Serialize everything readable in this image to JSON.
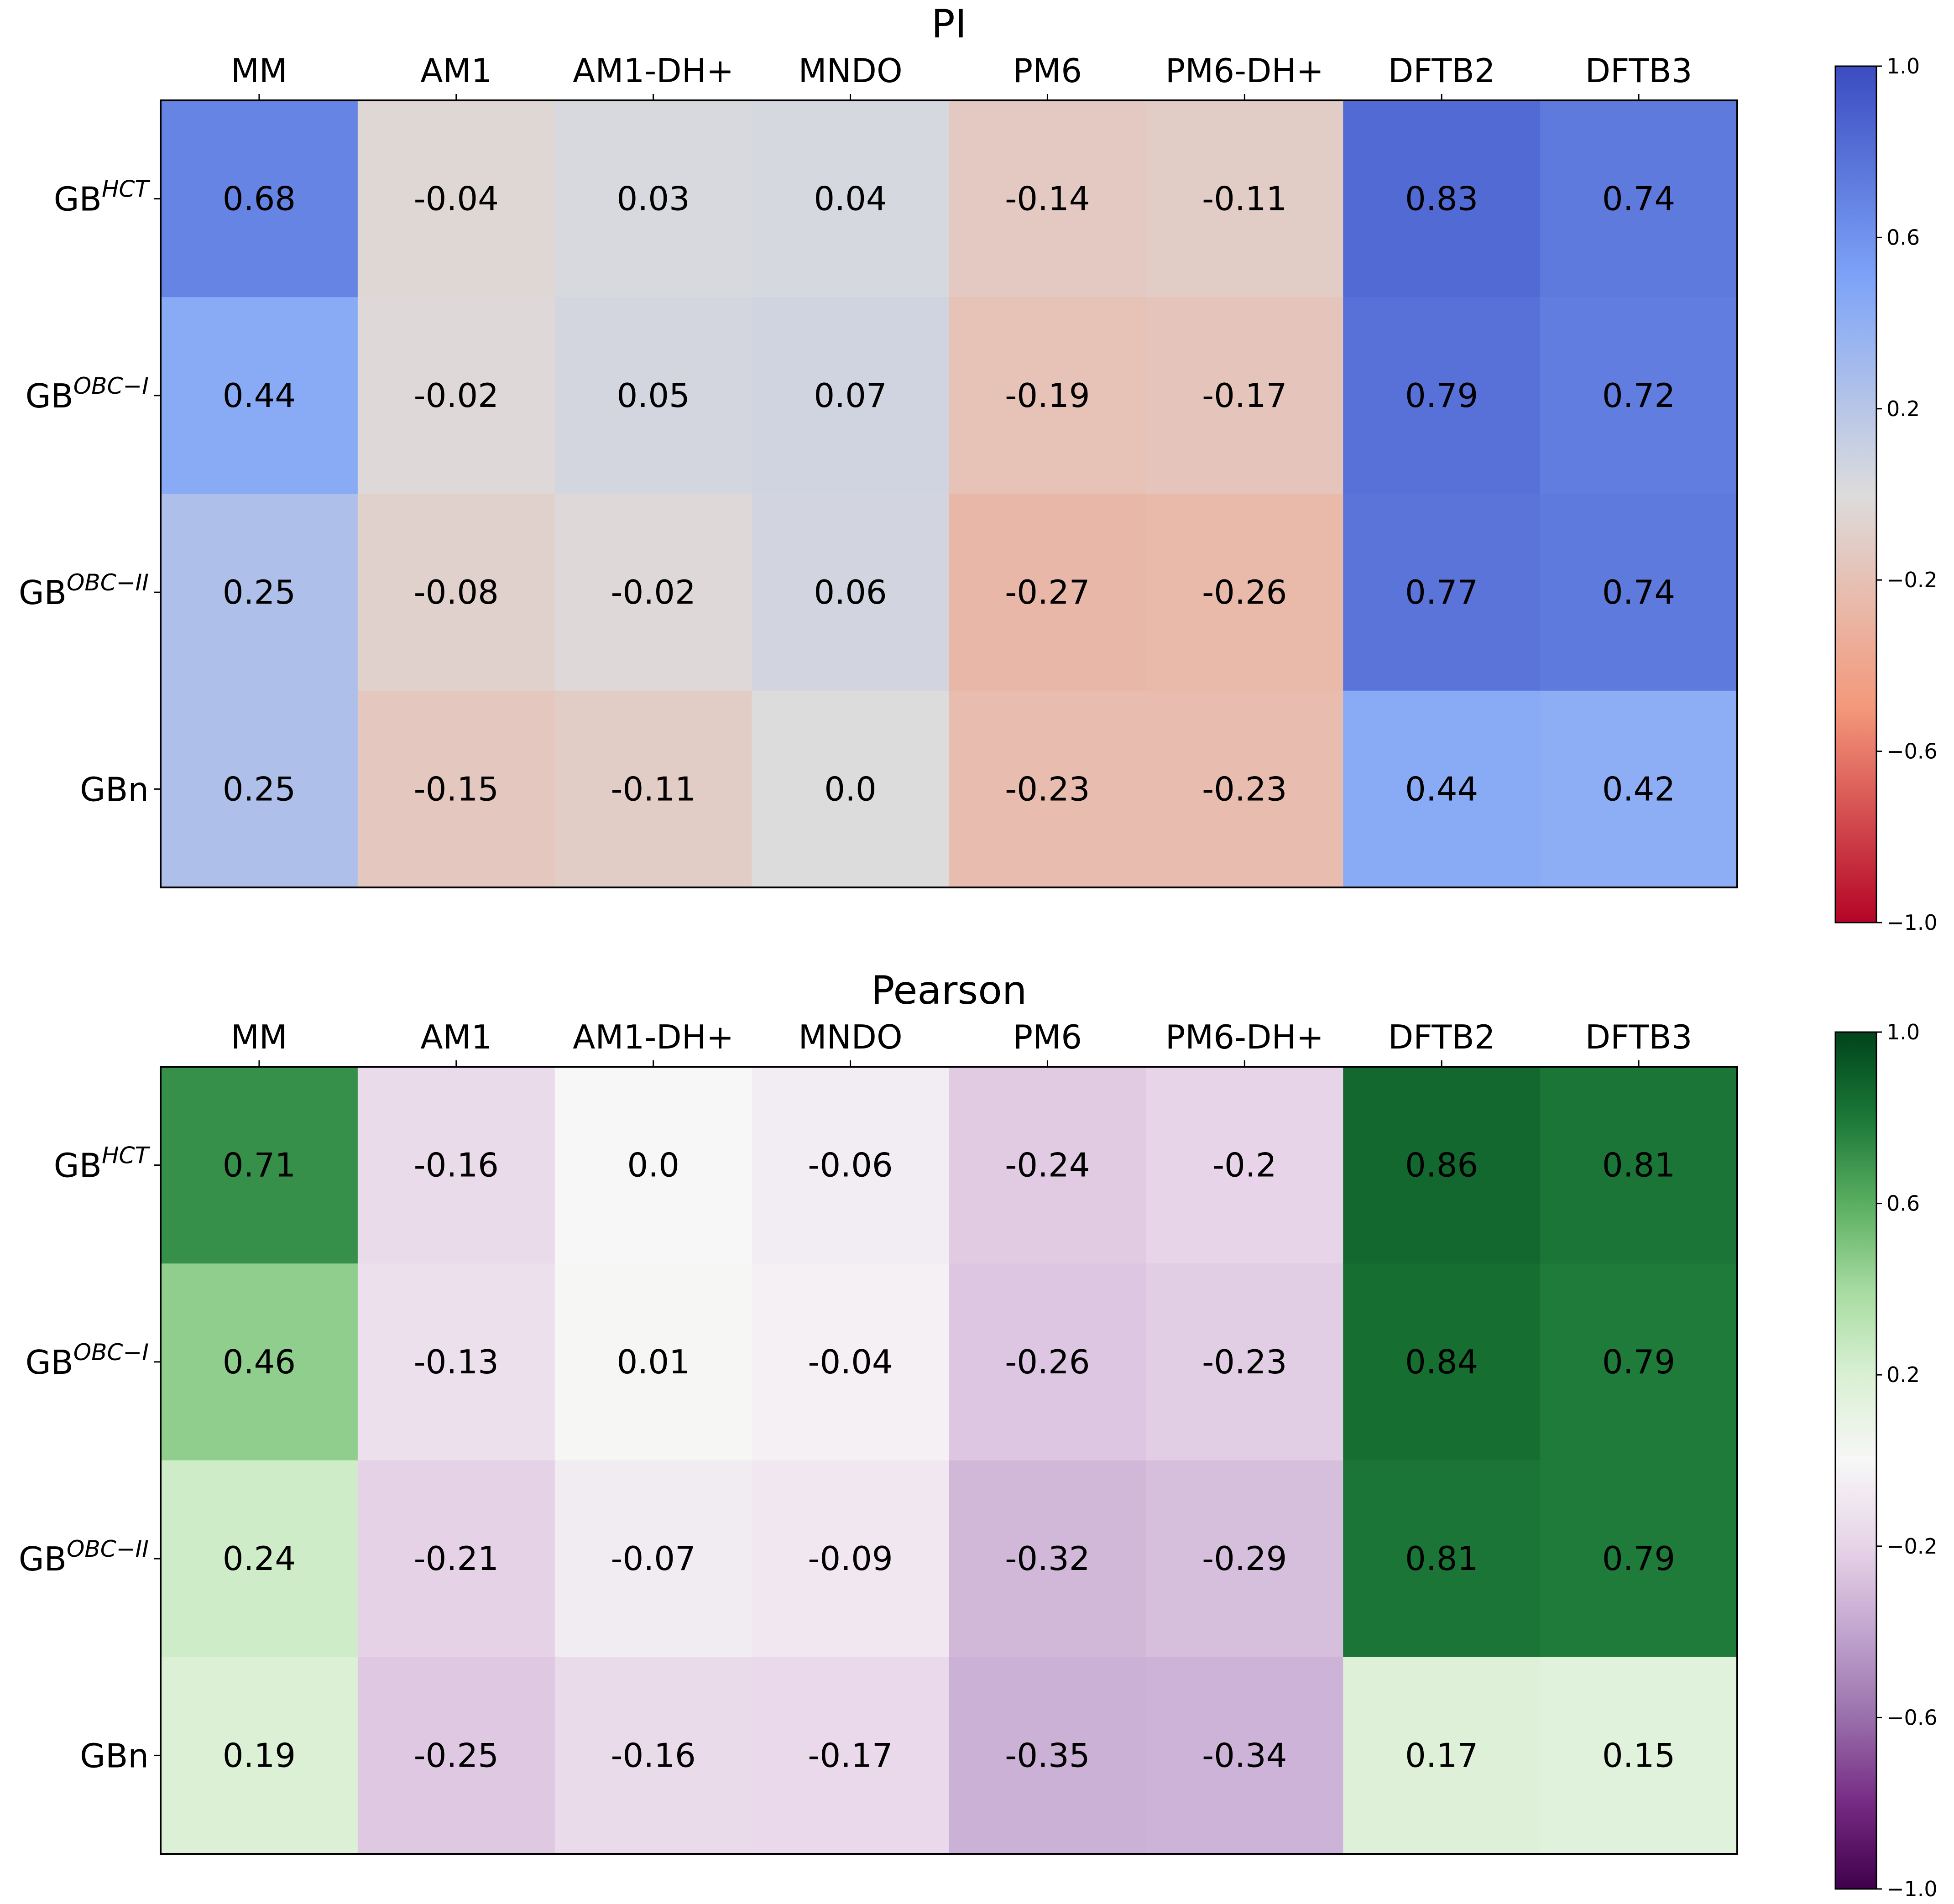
{
  "chart_data": [
    {
      "type": "heatmap",
      "title": "PI",
      "colormap": "coolwarm_r",
      "columns": [
        "MM",
        "AM1",
        "AM1-DH+",
        "MNDO",
        "PM6",
        "PM6-DH+",
        "DFTB2",
        "DFTB3"
      ],
      "rows": [
        {
          "base": "GB",
          "sup": "HCT"
        },
        {
          "base": "GB",
          "sup": "OBC−I"
        },
        {
          "base": "GB",
          "sup": "OBC−II"
        },
        {
          "base": "GBn",
          "sup": ""
        }
      ],
      "values": [
        [
          0.68,
          -0.04,
          0.03,
          0.04,
          -0.14,
          -0.11,
          0.83,
          0.74
        ],
        [
          0.44,
          -0.02,
          0.05,
          0.07,
          -0.19,
          -0.17,
          0.79,
          0.72
        ],
        [
          0.25,
          -0.08,
          -0.02,
          0.06,
          -0.27,
          -0.26,
          0.77,
          0.74
        ],
        [
          0.25,
          -0.15,
          -0.11,
          0.0,
          -0.23,
          -0.23,
          0.44,
          0.42
        ]
      ],
      "cell_labels": [
        [
          "0.68",
          "-0.04",
          "0.03",
          "0.04",
          "-0.14",
          "-0.11",
          "0.83",
          "0.74"
        ],
        [
          "0.44",
          "-0.02",
          "0.05",
          "0.07",
          "-0.19",
          "-0.17",
          "0.79",
          "0.72"
        ],
        [
          "0.25",
          "-0.08",
          "-0.02",
          "0.06",
          "-0.27",
          "-0.26",
          "0.77",
          "0.74"
        ],
        [
          "0.25",
          "-0.15",
          "-0.11",
          "0.0",
          "-0.23",
          "-0.23",
          "0.44",
          "0.42"
        ]
      ],
      "colorbar": {
        "range": [
          -1.0,
          1.0
        ],
        "ticks": [
          1.0,
          0.6,
          0.2,
          -0.2,
          -0.6,
          -1.0
        ],
        "tick_labels": [
          "1.0",
          "0.6",
          "0.2",
          "−0.2",
          "−0.6",
          "−1.0"
        ],
        "stops": [
          "#b40426",
          "#f4987a",
          "#dddcdc",
          "#7ea4f8",
          "#3b4cc0"
        ]
      }
    },
    {
      "type": "heatmap",
      "title": "Pearson",
      "colormap": "PRGn",
      "columns": [
        "MM",
        "AM1",
        "AM1-DH+",
        "MNDO",
        "PM6",
        "PM6-DH+",
        "DFTB2",
        "DFTB3"
      ],
      "rows": [
        {
          "base": "GB",
          "sup": "HCT"
        },
        {
          "base": "GB",
          "sup": "OBC−I"
        },
        {
          "base": "GB",
          "sup": "OBC−II"
        },
        {
          "base": "GBn",
          "sup": ""
        }
      ],
      "values": [
        [
          0.71,
          -0.16,
          0.0,
          -0.06,
          -0.24,
          -0.2,
          0.86,
          0.81
        ],
        [
          0.46,
          -0.13,
          0.01,
          -0.04,
          -0.26,
          -0.23,
          0.84,
          0.79
        ],
        [
          0.24,
          -0.21,
          -0.07,
          -0.09,
          -0.32,
          -0.29,
          0.81,
          0.79
        ],
        [
          0.19,
          -0.25,
          -0.16,
          -0.17,
          -0.35,
          -0.34,
          0.17,
          0.15
        ]
      ],
      "cell_labels": [
        [
          "0.71",
          "-0.16",
          "0.0",
          "-0.06",
          "-0.24",
          "-0.2",
          "0.86",
          "0.81"
        ],
        [
          "0.46",
          "-0.13",
          "0.01",
          "-0.04",
          "-0.26",
          "-0.23",
          "0.84",
          "0.79"
        ],
        [
          "0.24",
          "-0.21",
          "-0.07",
          "-0.09",
          "-0.32",
          "-0.29",
          "0.81",
          "0.79"
        ],
        [
          "0.19",
          "-0.25",
          "-0.16",
          "-0.17",
          "-0.35",
          "-0.34",
          "0.17",
          "0.15"
        ]
      ],
      "colorbar": {
        "range": [
          -1.0,
          1.0
        ],
        "ticks": [
          1.0,
          0.6,
          0.2,
          -0.2,
          -0.6,
          -1.0
        ],
        "tick_labels": [
          "1.0",
          "0.6",
          "0.2",
          "−0.2",
          "−0.6",
          "−1.0"
        ],
        "stops": [
          "#40004b",
          "#762a83",
          "#9970ab",
          "#c2a5cf",
          "#e7d4e8",
          "#f7f7f7",
          "#d9f0d3",
          "#a6dba0",
          "#5aae61",
          "#1b7837",
          "#00441b"
        ]
      }
    }
  ]
}
